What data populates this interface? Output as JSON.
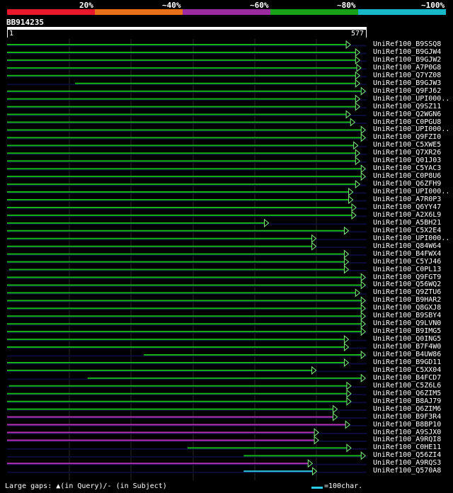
{
  "scale": {
    "labels": [
      "20%",
      "~40%",
      "~60%",
      "~80%",
      "~100%"
    ],
    "colors": [
      "#e8182c",
      "#e87018",
      "#9a2aa0",
      "#18a018",
      "#18b8c8"
    ]
  },
  "query": {
    "id": "BB914235",
    "start": "1",
    "end": "577",
    "length": 577
  },
  "legend": {
    "left": "Large gaps:",
    "query_label": "(in Query)/",
    "subject_label": "- (in Subject)",
    "right": "=100char."
  },
  "hits": [
    {
      "label": "UniRef100_B9SSQ8",
      "s": 1,
      "e": 551,
      "c": "g"
    },
    {
      "label": "UniRef100_B9GJW4",
      "s": 1,
      "e": 566,
      "c": "g"
    },
    {
      "label": "UniRef100_B9GJW2",
      "s": 1,
      "e": 566,
      "c": "g"
    },
    {
      "label": "UniRef100_A7P0G8",
      "s": 1,
      "e": 568,
      "c": "g"
    },
    {
      "label": "UniRef100_Q7YZ08",
      "s": 1,
      "e": 566,
      "c": "g"
    },
    {
      "label": "UniRef100_B9GJW3",
      "s": 110,
      "e": 566,
      "c": "g"
    },
    {
      "label": "UniRef100_Q9FJ62",
      "s": 1,
      "e": 575,
      "c": "g"
    },
    {
      "label": "UniRef100_UPI000..",
      "s": 1,
      "e": 566,
      "c": "g"
    },
    {
      "label": "UniRef100_Q9SZ11",
      "s": 1,
      "e": 566,
      "c": "g"
    },
    {
      "label": "UniRef100_Q2WGN6",
      "s": 1,
      "e": 551,
      "c": "g"
    },
    {
      "label": "UniRef100_C0PGU8",
      "s": 1,
      "e": 558,
      "c": "g"
    },
    {
      "label": "UniRef100_UPI000..",
      "s": 1,
      "e": 575,
      "c": "g"
    },
    {
      "label": "UniRef100_Q9FZI0",
      "s": 1,
      "e": 575,
      "c": "g"
    },
    {
      "label": "UniRef100_C5XWE5",
      "s": 1,
      "e": 563,
      "c": "g"
    },
    {
      "label": "UniRef100_Q7XR26",
      "s": 1,
      "e": 566,
      "c": "g"
    },
    {
      "label": "UniRef100_Q01J03",
      "s": 1,
      "e": 566,
      "c": "g"
    },
    {
      "label": "UniRef100_C5YAC3",
      "s": 1,
      "e": 575,
      "c": "g"
    },
    {
      "label": "UniRef100_C0P8U6",
      "s": 1,
      "e": 575,
      "c": "g"
    },
    {
      "label": "UniRef100_Q6ZFH9",
      "s": 1,
      "e": 566,
      "c": "g"
    },
    {
      "label": "UniRef100_UPI000..",
      "s": 1,
      "e": 555,
      "c": "g"
    },
    {
      "label": "UniRef100_A7R0P3",
      "s": 1,
      "e": 555,
      "c": "g"
    },
    {
      "label": "UniRef100_Q6YY47",
      "s": 1,
      "e": 560,
      "c": "g"
    },
    {
      "label": "UniRef100_A2X6L9",
      "s": 1,
      "e": 560,
      "c": "g"
    },
    {
      "label": "UniRef100_A5BH21",
      "s": 1,
      "e": 420,
      "c": "g"
    },
    {
      "label": "UniRef100_C5X2E4",
      "s": 1,
      "e": 548,
      "c": "g"
    },
    {
      "label": "UniRef100_UPI000..",
      "s": 1,
      "e": 496,
      "c": "g"
    },
    {
      "label": "UniRef100_Q84W64",
      "s": 1,
      "e": 496,
      "c": "g"
    },
    {
      "label": "UniRef100_B4FWX4",
      "s": 1,
      "e": 548,
      "c": "g"
    },
    {
      "label": "UniRef100_C5YJ46",
      "s": 1,
      "e": 548,
      "c": "g"
    },
    {
      "label": "UniRef100_C0PL13",
      "s": 4,
      "e": 548,
      "c": "g"
    },
    {
      "label": "UniRef100_Q9FGT9",
      "s": 1,
      "e": 575,
      "c": "g"
    },
    {
      "label": "UniRef100_Q56WQ2",
      "s": 1,
      "e": 575,
      "c": "g"
    },
    {
      "label": "UniRef100_Q9ZTU6",
      "s": 1,
      "e": 566,
      "c": "g"
    },
    {
      "label": "UniRef100_B9HAR2",
      "s": 1,
      "e": 575,
      "c": "g"
    },
    {
      "label": "UniRef100_Q8GXJ8",
      "s": 1,
      "e": 575,
      "c": "g"
    },
    {
      "label": "UniRef100_B9SBY4",
      "s": 1,
      "e": 575,
      "c": "g"
    },
    {
      "label": "UniRef100_Q9LVN0",
      "s": 1,
      "e": 575,
      "c": "g"
    },
    {
      "label": "UniRef100_B9IMG5",
      "s": 1,
      "e": 575,
      "c": "g"
    },
    {
      "label": "UniRef100_Q0ING5",
      "s": 1,
      "e": 548,
      "c": "g"
    },
    {
      "label": "UniRef100_B7F4W0",
      "s": 1,
      "e": 548,
      "c": "g"
    },
    {
      "label": "UniRef100_B4UW86",
      "s": 220,
      "e": 575,
      "c": "g"
    },
    {
      "label": "UniRef100_B9GD11",
      "s": 1,
      "e": 548,
      "c": "g"
    },
    {
      "label": "UniRef100_C5XX04",
      "s": 1,
      "e": 496,
      "c": "g"
    },
    {
      "label": "UniRef100_B4FCD7",
      "s": 130,
      "e": 575,
      "c": "g"
    },
    {
      "label": "UniRef100_C5Z6L6",
      "s": 4,
      "e": 552,
      "c": "g"
    },
    {
      "label": "UniRef100_Q6ZIM5",
      "s": 1,
      "e": 552,
      "c": "g"
    },
    {
      "label": "UniRef100_B8AJ79",
      "s": 1,
      "e": 552,
      "c": "g"
    },
    {
      "label": "UniRef100_Q6ZIM6",
      "s": 1,
      "e": 530,
      "c": "g"
    },
    {
      "label": "UniRef100_B9F3R4",
      "s": 1,
      "e": 530,
      "c": "p"
    },
    {
      "label": "UniRef100_B8BP10",
      "s": 1,
      "e": 550,
      "c": "p"
    },
    {
      "label": "UniRef100_A9SJX0",
      "s": 1,
      "e": 500,
      "c": "p"
    },
    {
      "label": "UniRef100_A9RQI8",
      "s": 1,
      "e": 500,
      "c": "p"
    },
    {
      "label": "UniRef100_C0HE11",
      "s": 290,
      "e": 552,
      "c": "g"
    },
    {
      "label": "UniRef100_Q56ZI4",
      "s": 380,
      "e": 575,
      "c": "g"
    },
    {
      "label": "UniRef100_A9RQS3",
      "s": 1,
      "e": 490,
      "c": "p"
    },
    {
      "label": "UniRef100_Q570A8",
      "s": 380,
      "e": 497,
      "c": "c"
    }
  ]
}
